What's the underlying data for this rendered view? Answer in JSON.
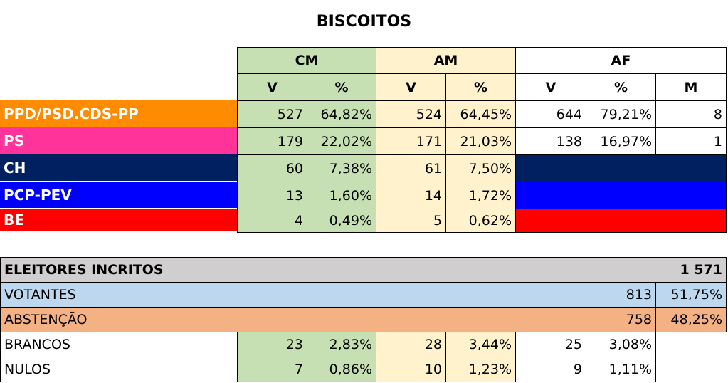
{
  "title": "BISCOITOS",
  "results": {
    "groups": [
      "CM",
      "AM",
      "AF"
    ],
    "subheaders": [
      "V",
      "%",
      "V",
      "%",
      "V",
      "%",
      "M"
    ],
    "rows": [
      {
        "party": "PPD/PSD.CDS-PP",
        "color": "#ff8c00",
        "cells": [
          "527",
          "64,82%",
          "524",
          "64,45%",
          "644",
          "79,21%",
          "8"
        ]
      },
      {
        "party": "PS",
        "color": "#ff3399",
        "cells": [
          "179",
          "22,02%",
          "171",
          "21,03%",
          "138",
          "16,97%",
          "1"
        ]
      },
      {
        "party": "CH",
        "color": "#002060",
        "cells": [
          "60",
          "7,38%",
          "61",
          "7,50%"
        ]
      },
      {
        "party": "PCP-PEV",
        "color": "#0000ff",
        "cells": [
          "13",
          "1,60%",
          "14",
          "1,72%"
        ]
      },
      {
        "party": "BE",
        "color": "#ff0000",
        "cells": [
          "4",
          "0,49%",
          "5",
          "0,62%"
        ]
      }
    ]
  },
  "summary": {
    "registered": {
      "label": "ELEITORES INCRITOS",
      "value": "1 571"
    },
    "voters": {
      "label": "VOTANTES",
      "value": "813",
      "percent": "51,75%"
    },
    "abstention": {
      "label": "ABSTENÇÃO",
      "value": "758",
      "percent": "48,25%"
    },
    "blank": {
      "label": "BRANCOS",
      "cells": [
        "23",
        "2,83%",
        "28",
        "3,44%",
        "25",
        "3,08%"
      ]
    },
    "null": {
      "label": "NULOS",
      "cells": [
        "7",
        "0,86%",
        "10",
        "1,23%",
        "9",
        "1,11%"
      ]
    }
  }
}
